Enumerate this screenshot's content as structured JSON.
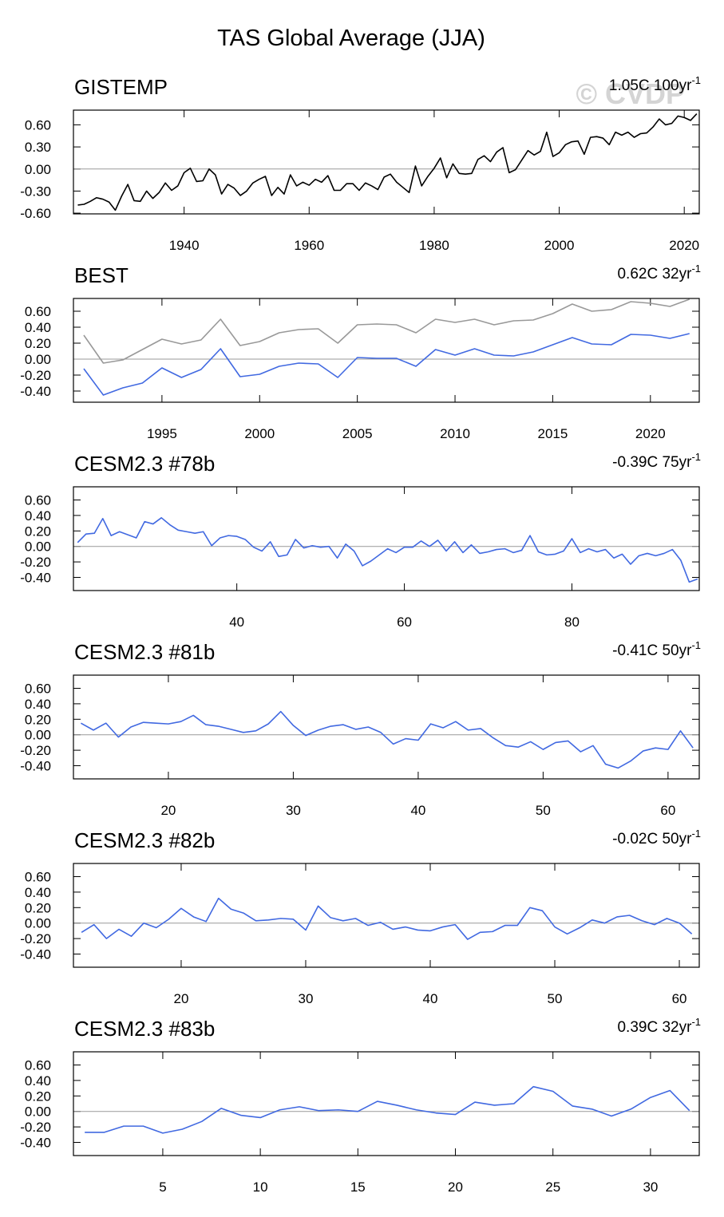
{
  "title": "TAS Global Average (JJA)",
  "watermark": "© CVDP",
  "chart_data": [
    {
      "type": "line",
      "title": "GISTEMP",
      "trend": "1.05C 100yr",
      "trend_sup": "-1",
      "x": [
        1923,
        1924,
        1925,
        1926,
        1927,
        1928,
        1929,
        1930,
        1931,
        1932,
        1933,
        1934,
        1935,
        1936,
        1937,
        1938,
        1939,
        1940,
        1941,
        1942,
        1943,
        1944,
        1945,
        1946,
        1947,
        1948,
        1949,
        1950,
        1951,
        1952,
        1953,
        1954,
        1955,
        1956,
        1957,
        1958,
        1959,
        1960,
        1961,
        1962,
        1963,
        1964,
        1965,
        1966,
        1967,
        1968,
        1969,
        1970,
        1971,
        1972,
        1973,
        1974,
        1975,
        1976,
        1977,
        1978,
        1979,
        1980,
        1981,
        1982,
        1983,
        1984,
        1985,
        1986,
        1987,
        1988,
        1989,
        1990,
        1991,
        1992,
        1993,
        1994,
        1995,
        1996,
        1997,
        1998,
        1999,
        2000,
        2001,
        2002,
        2003,
        2004,
        2005,
        2006,
        2007,
        2008,
        2009,
        2010,
        2011,
        2012,
        2013,
        2014,
        2015,
        2016,
        2017,
        2018,
        2019,
        2020,
        2021,
        2022
      ],
      "series": [
        {
          "color": "#000000",
          "values": [
            -0.49,
            -0.48,
            -0.44,
            -0.39,
            -0.41,
            -0.45,
            -0.56,
            -0.37,
            -0.21,
            -0.43,
            -0.44,
            -0.3,
            -0.4,
            -0.32,
            -0.19,
            -0.29,
            -0.23,
            -0.05,
            0.01,
            -0.17,
            -0.16,
            0.0,
            -0.08,
            -0.34,
            -0.21,
            -0.26,
            -0.36,
            -0.3,
            -0.19,
            -0.14,
            -0.1,
            -0.36,
            -0.25,
            -0.34,
            -0.08,
            -0.23,
            -0.18,
            -0.22,
            -0.14,
            -0.18,
            -0.09,
            -0.29,
            -0.29,
            -0.2,
            -0.2,
            -0.29,
            -0.19,
            -0.23,
            -0.28,
            -0.11,
            -0.07,
            -0.18,
            -0.25,
            -0.32,
            0.04,
            -0.23,
            -0.1,
            0.01,
            0.15,
            -0.12,
            0.07,
            -0.06,
            -0.07,
            -0.06,
            0.13,
            0.18,
            0.1,
            0.23,
            0.29,
            -0.05,
            -0.01,
            0.12,
            0.25,
            0.19,
            0.24,
            0.5,
            0.17,
            0.22,
            0.33,
            0.37,
            0.38,
            0.2,
            0.43,
            0.44,
            0.42,
            0.33,
            0.5,
            0.46,
            0.5,
            0.43,
            0.48,
            0.49,
            0.57,
            0.68,
            0.6,
            0.62,
            0.72,
            0.7,
            0.66,
            0.75
          ]
        }
      ],
      "xlim": [
        1922.3,
        2022.4
      ],
      "ylim": [
        -0.61,
        0.8
      ],
      "xticks": [
        1940,
        1960,
        1980,
        2000,
        2020
      ],
      "yticks": [
        {
          "value": -0.6,
          "label": "-0.60"
        },
        {
          "value": -0.3,
          "label": "-0.30"
        },
        {
          "value": 0,
          "label": "0.00"
        },
        {
          "value": 0.3,
          "label": "0.30"
        },
        {
          "value": 0.6,
          "label": "0.60"
        }
      ],
      "zero_line": true
    },
    {
      "type": "line",
      "title": "BEST",
      "trend": "0.62C 32yr",
      "trend_sup": "-1",
      "x": [
        1991,
        1992,
        1993,
        1994,
        1995,
        1996,
        1997,
        1998,
        1999,
        2000,
        2001,
        2002,
        2003,
        2004,
        2005,
        2006,
        2007,
        2008,
        2009,
        2010,
        2011,
        2012,
        2013,
        2014,
        2015,
        2016,
        2017,
        2018,
        2019,
        2020,
        2021,
        2022
      ],
      "series": [
        {
          "color": "#999999",
          "values": [
            0.3,
            -0.05,
            -0.01,
            0.12,
            0.25,
            0.19,
            0.24,
            0.5,
            0.17,
            0.22,
            0.33,
            0.37,
            0.38,
            0.2,
            0.43,
            0.44,
            0.43,
            0.33,
            0.5,
            0.46,
            0.5,
            0.43,
            0.48,
            0.49,
            0.57,
            0.69,
            0.6,
            0.62,
            0.72,
            0.7,
            0.66,
            0.75
          ]
        },
        {
          "color": "#4169e1",
          "values": [
            -0.12,
            -0.45,
            -0.36,
            -0.3,
            -0.11,
            -0.23,
            -0.13,
            0.13,
            -0.22,
            -0.19,
            -0.09,
            -0.05,
            -0.06,
            -0.23,
            0.02,
            0.01,
            0.01,
            -0.09,
            0.12,
            0.05,
            0.13,
            0.05,
            0.04,
            0.09,
            0.18,
            0.27,
            0.19,
            0.18,
            0.31,
            0.3,
            0.26,
            0.32
          ]
        }
      ],
      "xlim": [
        1990.47,
        2022.5
      ],
      "ylim": [
        -0.54,
        0.76
      ],
      "xticks": [
        1995,
        2000,
        2005,
        2010,
        2015,
        2020
      ],
      "yticks": [
        {
          "value": -0.4,
          "label": "-0.40"
        },
        {
          "value": -0.2,
          "label": "-0.20"
        },
        {
          "value": 0,
          "label": "0.00"
        },
        {
          "value": 0.2,
          "label": "0.20"
        },
        {
          "value": 0.4,
          "label": "0.40"
        },
        {
          "value": 0.6,
          "label": "0.60"
        }
      ],
      "zero_line": true
    },
    {
      "type": "line",
      "title": "CESM2.3 #78b",
      "trend": "-0.39C 75yr",
      "trend_sup": "-1",
      "x": [
        21,
        22,
        23,
        24,
        25,
        26,
        27,
        28,
        29,
        30,
        31,
        32,
        33,
        34,
        35,
        36,
        37,
        38,
        39,
        40,
        41,
        42,
        43,
        44,
        45,
        46,
        47,
        48,
        49,
        50,
        51,
        52,
        53,
        54,
        55,
        56,
        57,
        58,
        59,
        60,
        61,
        62,
        63,
        64,
        65,
        66,
        67,
        68,
        69,
        70,
        71,
        72,
        73,
        74,
        75,
        76,
        77,
        78,
        79,
        80,
        81,
        82,
        83,
        84,
        85,
        86,
        87,
        88,
        89,
        90,
        91,
        92,
        93,
        94,
        95
      ],
      "series": [
        {
          "color": "#4169e1",
          "values": [
            0.05,
            0.16,
            0.17,
            0.36,
            0.14,
            0.19,
            0.15,
            0.11,
            0.32,
            0.29,
            0.37,
            0.28,
            0.21,
            0.19,
            0.17,
            0.19,
            0.01,
            0.11,
            0.14,
            0.13,
            0.09,
            -0.01,
            -0.06,
            0.06,
            -0.13,
            -0.11,
            0.09,
            -0.02,
            0.01,
            -0.01,
            0.0,
            -0.15,
            0.03,
            -0.06,
            -0.25,
            -0.19,
            -0.11,
            -0.03,
            -0.08,
            -0.01,
            -0.01,
            0.07,
            0.0,
            0.08,
            -0.06,
            0.06,
            -0.08,
            0.02,
            -0.09,
            -0.07,
            -0.04,
            -0.03,
            -0.08,
            -0.05,
            0.14,
            -0.07,
            -0.11,
            -0.1,
            -0.06,
            0.1,
            -0.08,
            -0.03,
            -0.07,
            -0.04,
            -0.15,
            -0.1,
            -0.23,
            -0.12,
            -0.09,
            -0.12,
            -0.09,
            -0.04,
            -0.18,
            -0.46,
            -0.42
          ]
        }
      ],
      "xlim": [
        20.5,
        95.2
      ],
      "ylim": [
        -0.57,
        0.77
      ],
      "xticks": [
        40,
        60,
        80
      ],
      "yticks": [
        {
          "value": -0.4,
          "label": "-0.40"
        },
        {
          "value": -0.2,
          "label": "-0.20"
        },
        {
          "value": 0,
          "label": "0.00"
        },
        {
          "value": 0.2,
          "label": "0.20"
        },
        {
          "value": 0.4,
          "label": "0.40"
        },
        {
          "value": 0.6,
          "label": "0.60"
        }
      ],
      "zero_line": true
    },
    {
      "type": "line",
      "title": "CESM2.3 #81b",
      "trend": "-0.41C 50yr",
      "trend_sup": "-1",
      "x": [
        13,
        14,
        15,
        16,
        17,
        18,
        19,
        20,
        21,
        22,
        23,
        24,
        25,
        26,
        27,
        28,
        29,
        30,
        31,
        32,
        33,
        34,
        35,
        36,
        37,
        38,
        39,
        40,
        41,
        42,
        43,
        44,
        45,
        46,
        47,
        48,
        49,
        50,
        51,
        52,
        53,
        54,
        55,
        56,
        57,
        58,
        59,
        60,
        61,
        62
      ],
      "series": [
        {
          "color": "#4169e1",
          "values": [
            0.15,
            0.06,
            0.15,
            -0.03,
            0.1,
            0.16,
            0.15,
            0.14,
            0.17,
            0.25,
            0.13,
            0.11,
            0.07,
            0.03,
            0.05,
            0.14,
            0.3,
            0.12,
            -0.01,
            0.06,
            0.11,
            0.13,
            0.07,
            0.1,
            0.03,
            -0.12,
            -0.05,
            -0.07,
            0.14,
            0.09,
            0.17,
            0.06,
            0.08,
            -0.04,
            -0.14,
            -0.16,
            -0.09,
            -0.19,
            -0.1,
            -0.08,
            -0.22,
            -0.14,
            -0.38,
            -0.43,
            -0.34,
            -0.21,
            -0.17,
            -0.19,
            0.05,
            -0.17
          ]
        }
      ],
      "xlim": [
        12.4,
        62.5
      ],
      "ylim": [
        -0.57,
        0.77
      ],
      "xticks": [
        20,
        30,
        40,
        50,
        60
      ],
      "yticks": [
        {
          "value": -0.4,
          "label": "-0.40"
        },
        {
          "value": -0.2,
          "label": "-0.20"
        },
        {
          "value": 0,
          "label": "0.00"
        },
        {
          "value": 0.2,
          "label": "0.20"
        },
        {
          "value": 0.4,
          "label": "0.40"
        },
        {
          "value": 0.6,
          "label": "0.60"
        }
      ],
      "zero_line": true
    },
    {
      "type": "line",
      "title": "CESM2.3 #82b",
      "trend": "-0.02C 50yr",
      "trend_sup": "-1",
      "x": [
        12,
        13,
        14,
        15,
        16,
        17,
        18,
        19,
        20,
        21,
        22,
        23,
        24,
        25,
        26,
        27,
        28,
        29,
        30,
        31,
        32,
        33,
        34,
        35,
        36,
        37,
        38,
        39,
        40,
        41,
        42,
        43,
        44,
        45,
        46,
        47,
        48,
        49,
        50,
        51,
        52,
        53,
        54,
        55,
        56,
        57,
        58,
        59,
        60,
        61
      ],
      "series": [
        {
          "color": "#4169e1",
          "values": [
            -0.12,
            -0.02,
            -0.2,
            -0.08,
            -0.17,
            0.0,
            -0.06,
            0.05,
            0.19,
            0.08,
            0.02,
            0.32,
            0.18,
            0.13,
            0.03,
            0.04,
            0.06,
            0.05,
            -0.09,
            0.22,
            0.07,
            0.03,
            0.06,
            -0.03,
            0.01,
            -0.08,
            -0.05,
            -0.09,
            -0.1,
            -0.05,
            -0.02,
            -0.21,
            -0.12,
            -0.11,
            -0.03,
            -0.03,
            0.2,
            0.16,
            -0.05,
            -0.14,
            -0.06,
            0.04,
            0.0,
            0.08,
            0.1,
            0.03,
            -0.02,
            0.06,
            0.0,
            -0.14
          ]
        }
      ],
      "xlim": [
        11.35,
        61.6
      ],
      "ylim": [
        -0.57,
        0.77
      ],
      "xticks": [
        20,
        30,
        40,
        50,
        60
      ],
      "yticks": [
        {
          "value": -0.4,
          "label": "-0.40"
        },
        {
          "value": -0.2,
          "label": "-0.20"
        },
        {
          "value": 0,
          "label": "0.00"
        },
        {
          "value": 0.2,
          "label": "0.20"
        },
        {
          "value": 0.4,
          "label": "0.40"
        },
        {
          "value": 0.6,
          "label": "0.60"
        }
      ],
      "zero_line": true
    },
    {
      "type": "line",
      "title": "CESM2.3 #83b",
      "trend": "0.39C 32yr",
      "trend_sup": "-1",
      "x": [
        1,
        2,
        3,
        4,
        5,
        6,
        7,
        8,
        9,
        10,
        11,
        12,
        13,
        14,
        15,
        16,
        17,
        18,
        19,
        20,
        21,
        22,
        23,
        24,
        25,
        26,
        27,
        28,
        29,
        30,
        31,
        32
      ],
      "series": [
        {
          "color": "#4169e1",
          "values": [
            -0.27,
            -0.27,
            -0.19,
            -0.19,
            -0.28,
            -0.23,
            -0.13,
            0.04,
            -0.05,
            -0.08,
            0.02,
            0.06,
            0.01,
            0.02,
            0.0,
            0.13,
            0.08,
            0.02,
            -0.02,
            -0.04,
            0.12,
            0.08,
            0.1,
            0.32,
            0.26,
            0.07,
            0.03,
            -0.06,
            0.03,
            0.18,
            0.27,
            0.01
          ]
        }
      ],
      "xlim": [
        0.42,
        32.5
      ],
      "ylim": [
        -0.57,
        0.77
      ],
      "xticks": [
        5,
        10,
        15,
        20,
        25,
        30
      ],
      "yticks": [
        {
          "value": -0.4,
          "label": "-0.40"
        },
        {
          "value": -0.2,
          "label": "-0.20"
        },
        {
          "value": 0,
          "label": "0.00"
        },
        {
          "value": 0.2,
          "label": "0.20"
        },
        {
          "value": 0.4,
          "label": "0.40"
        },
        {
          "value": 0.6,
          "label": "0.60"
        }
      ],
      "zero_line": true
    }
  ]
}
